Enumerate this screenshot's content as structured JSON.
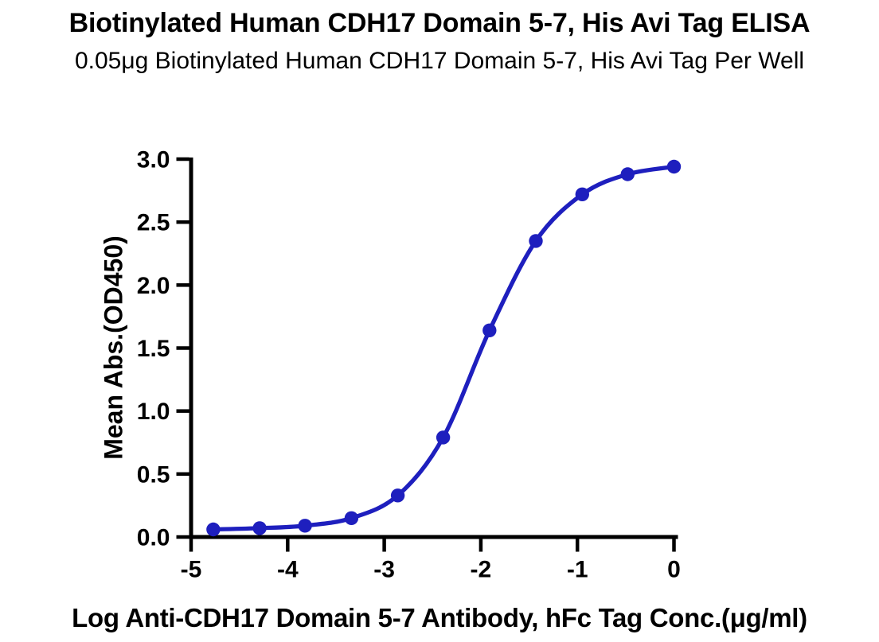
{
  "chart_data": {
    "type": "line",
    "title": "Biotinylated Human CDH17 Domain 5-7, His Avi Tag ELISA",
    "subtitle": "0.05μg Biotinylated Human CDH17 Domain 5-7, His Avi Tag Per Well",
    "xlabel": "Log Anti-CDH17 Domain 5-7 Antibody, hFc Tag Conc.(μg/ml)",
    "ylabel": "Mean Abs.(OD450)",
    "xlim": [
      -5,
      0
    ],
    "ylim": [
      0,
      3
    ],
    "xticks": [
      -5,
      -4,
      -3,
      -2,
      -1,
      0
    ],
    "xtick_labels": [
      "-5",
      "-4",
      "-3",
      "-2",
      "-1",
      "0"
    ],
    "yticks": [
      0.0,
      0.5,
      1.0,
      1.5,
      2.0,
      2.5,
      3.0
    ],
    "ytick_labels": [
      "0.0",
      "0.5",
      "1.0",
      "1.5",
      "2.0",
      "2.5",
      "3.0"
    ],
    "grid": false,
    "legend": "none",
    "line_color": "#1e1fbe",
    "marker_color": "#1e1fbe",
    "axis_color": "#000000",
    "series": [
      {
        "x": [
          -4.77,
          -4.29,
          -3.82,
          -3.34,
          -2.86,
          -2.39,
          -1.91,
          -1.43,
          -0.95,
          -0.48,
          0.0
        ],
        "y": [
          0.06,
          0.07,
          0.09,
          0.15,
          0.33,
          0.79,
          1.64,
          2.35,
          2.72,
          2.88,
          2.94
        ]
      }
    ]
  }
}
